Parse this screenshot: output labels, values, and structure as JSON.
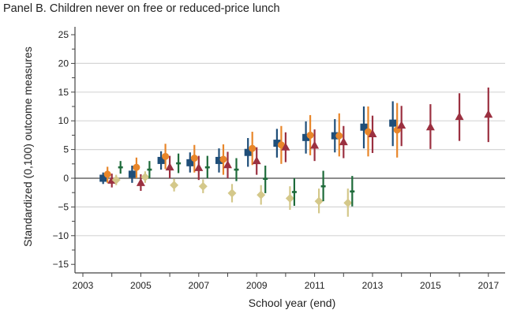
{
  "title": "Panel B. Children never on free or reduced-price lunch",
  "chart_data": {
    "type": "scatter",
    "title": "Panel B. Children never on free or reduced-price lunch",
    "xlabel": "School year (end)",
    "ylabel": "Standardized (0,100) outcome measures",
    "xlim": [
      2003,
      2017.5
    ],
    "ylim": [
      -15,
      25
    ],
    "xticks": [
      2003,
      2005,
      2007,
      2009,
      2011,
      2013,
      2015,
      2017
    ],
    "yticks": [
      25,
      20,
      15,
      10,
      5,
      0,
      -5,
      -10,
      -15
    ],
    "grid": true,
    "legend": "none",
    "series": [
      {
        "name": "navy-square",
        "marker": "square",
        "color": "#1f4e79",
        "offset": -0.3,
        "points": [
          {
            "x": 2004,
            "y": 0.0,
            "lo": -1.0,
            "hi": 1.0
          },
          {
            "x": 2005,
            "y": 0.7,
            "lo": -0.8,
            "hi": 2.2
          },
          {
            "x": 2006,
            "y": 3.1,
            "lo": 1.5,
            "hi": 4.7
          },
          {
            "x": 2007,
            "y": 2.7,
            "lo": 1.0,
            "hi": 4.5
          },
          {
            "x": 2008,
            "y": 3.1,
            "lo": 1.0,
            "hi": 5.2
          },
          {
            "x": 2009,
            "y": 4.5,
            "lo": 2.0,
            "hi": 7.0
          },
          {
            "x": 2010,
            "y": 6.1,
            "lo": 3.6,
            "hi": 8.6
          },
          {
            "x": 2011,
            "y": 7.1,
            "lo": 4.3,
            "hi": 9.9
          },
          {
            "x": 2012,
            "y": 7.4,
            "lo": 4.5,
            "hi": 10.3
          },
          {
            "x": 2013,
            "y": 8.9,
            "lo": 5.2,
            "hi": 12.5
          },
          {
            "x": 2014,
            "y": 9.6,
            "lo": 5.6,
            "hi": 13.4
          }
        ]
      },
      {
        "name": "orange-circle",
        "marker": "circle",
        "color": "#e8862a",
        "offset": -0.15,
        "points": [
          {
            "x": 2004,
            "y": 0.7,
            "lo": -0.8,
            "hi": 2.0
          },
          {
            "x": 2005,
            "y": 1.9,
            "lo": 0.0,
            "hi": 3.6
          },
          {
            "x": 2006,
            "y": 3.8,
            "lo": 1.6,
            "hi": 6.0
          },
          {
            "x": 2007,
            "y": 3.5,
            "lo": 1.0,
            "hi": 5.8
          },
          {
            "x": 2008,
            "y": 3.3,
            "lo": 0.6,
            "hi": 5.9
          },
          {
            "x": 2009,
            "y": 5.2,
            "lo": 2.3,
            "hi": 8.1
          },
          {
            "x": 2010,
            "y": 5.8,
            "lo": 2.5,
            "hi": 9.1
          },
          {
            "x": 2011,
            "y": 7.5,
            "lo": 4.0,
            "hi": 11.0
          },
          {
            "x": 2012,
            "y": 7.4,
            "lo": 3.8,
            "hi": 11.3
          },
          {
            "x": 2013,
            "y": 8.1,
            "lo": 3.8,
            "hi": 12.5
          },
          {
            "x": 2014,
            "y": 8.4,
            "lo": 3.6,
            "hi": 13.1
          }
        ]
      },
      {
        "name": "red-triangle",
        "marker": "triangle",
        "color": "#9b3040",
        "offset": 0.0,
        "points": [
          {
            "x": 2004,
            "y": -0.4,
            "lo": -1.6,
            "hi": 0.8
          },
          {
            "x": 2005,
            "y": -0.8,
            "lo": -2.2,
            "hi": 0.7
          },
          {
            "x": 2006,
            "y": 1.9,
            "lo": 0.0,
            "hi": 3.9
          },
          {
            "x": 2007,
            "y": 1.8,
            "lo": -0.3,
            "hi": 3.9
          },
          {
            "x": 2008,
            "y": 2.3,
            "lo": 0.0,
            "hi": 4.6
          },
          {
            "x": 2009,
            "y": 3.0,
            "lo": 0.6,
            "hi": 5.4
          },
          {
            "x": 2010,
            "y": 5.4,
            "lo": 2.8,
            "hi": 8.0
          },
          {
            "x": 2011,
            "y": 5.7,
            "lo": 3.0,
            "hi": 8.5
          },
          {
            "x": 2012,
            "y": 6.3,
            "lo": 3.5,
            "hi": 9.1
          },
          {
            "x": 2013,
            "y": 7.7,
            "lo": 4.4,
            "hi": 10.9
          },
          {
            "x": 2014,
            "y": 9.2,
            "lo": 5.6,
            "hi": 12.6
          },
          {
            "x": 2015,
            "y": 8.9,
            "lo": 5.1,
            "hi": 12.9
          },
          {
            "x": 2016,
            "y": 10.7,
            "lo": 6.5,
            "hi": 14.8
          },
          {
            "x": 2017,
            "y": 11.1,
            "lo": 6.3,
            "hi": 15.8
          }
        ]
      },
      {
        "name": "tan-diamond",
        "marker": "diamond",
        "color": "#d4c88a",
        "offset": 0.15,
        "points": [
          {
            "x": 2004,
            "y": -0.3,
            "lo": -1.2,
            "hi": 0.6
          },
          {
            "x": 2005,
            "y": 0.2,
            "lo": -0.8,
            "hi": 1.2
          },
          {
            "x": 2006,
            "y": -1.2,
            "lo": -2.3,
            "hi": -0.1
          },
          {
            "x": 2007,
            "y": -1.4,
            "lo": -2.6,
            "hi": -0.2
          },
          {
            "x": 2008,
            "y": -2.6,
            "lo": -4.2,
            "hi": -1.0
          },
          {
            "x": 2009,
            "y": -2.9,
            "lo": -4.6,
            "hi": -1.2
          },
          {
            "x": 2010,
            "y": -3.5,
            "lo": -5.5,
            "hi": -1.4
          },
          {
            "x": 2011,
            "y": -4.0,
            "lo": -6.1,
            "hi": -1.8
          },
          {
            "x": 2012,
            "y": -4.3,
            "lo": -6.7,
            "hi": -1.8
          }
        ]
      },
      {
        "name": "green-plus",
        "marker": "plus",
        "color": "#1e6b3a",
        "offset": 0.3,
        "points": [
          {
            "x": 2004,
            "y": 1.9,
            "lo": 0.8,
            "hi": 3.0
          },
          {
            "x": 2005,
            "y": 1.5,
            "lo": 0.0,
            "hi": 3.0
          },
          {
            "x": 2006,
            "y": 2.6,
            "lo": 0.9,
            "hi": 4.3
          },
          {
            "x": 2007,
            "y": 1.9,
            "lo": 0.0,
            "hi": 3.9
          },
          {
            "x": 2008,
            "y": 1.5,
            "lo": -0.5,
            "hi": 3.5
          },
          {
            "x": 2009,
            "y": -0.1,
            "lo": -2.6,
            "hi": 2.2
          },
          {
            "x": 2010,
            "y": -2.4,
            "lo": -4.8,
            "hi": 0.0
          },
          {
            "x": 2011,
            "y": -1.4,
            "lo": -4.0,
            "hi": 1.3
          },
          {
            "x": 2012,
            "y": -2.3,
            "lo": -4.9,
            "hi": 0.4
          }
        ]
      }
    ]
  }
}
